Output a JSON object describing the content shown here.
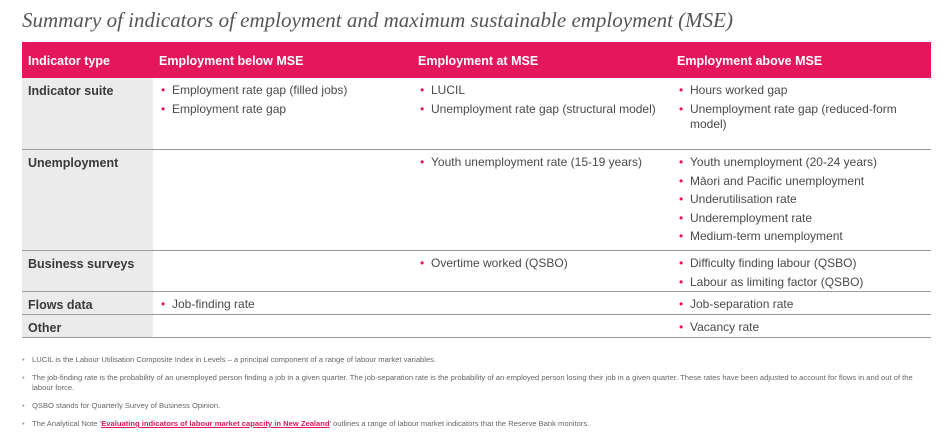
{
  "header": {
    "title": "Summary of indicators of employment and maximum sustainable employment (MSE)"
  },
  "table": {
    "columns": [
      "Indicator type",
      "Employment below MSE",
      "Employment at MSE",
      "Employment above MSE"
    ],
    "rows": [
      {
        "label": "Indicator suite",
        "cells": [
          [
            "Employment rate gap (filled jobs)",
            "Employment rate gap"
          ],
          [
            "LUCIL",
            "Unemployment rate gap (structural model)"
          ],
          [
            "Hours worked gap",
            "Unemployment rate gap (reduced-form model)"
          ]
        ]
      },
      {
        "label": "Unemployment",
        "cells": [
          [],
          [
            "Youth unemployment rate (15-19 years)"
          ],
          [
            "Youth unemployment (20-24 years)",
            "Māori and Pacific unemployment",
            "Underutilisation rate",
            "Underemployment rate",
            "Medium-term unemployment"
          ]
        ]
      },
      {
        "label": "Business surveys",
        "cells": [
          [],
          [
            "Overtime worked (QSBO)"
          ],
          [
            "Difficulty finding labour (QSBO)",
            "Labour as limiting factor (QSBO)"
          ]
        ]
      },
      {
        "label": "Flows data",
        "cells": [
          [
            "Job-finding rate"
          ],
          [],
          [
            "Job-separation rate"
          ]
        ]
      },
      {
        "label": "Other",
        "cells": [
          [],
          [],
          [
            "Vacancy rate"
          ]
        ]
      }
    ]
  },
  "footnotes": [
    {
      "text": "LUCIL is the Labour Utilisation Composite Index in Levels – a principal component of a range of labour market variables."
    },
    {
      "text": "The job-finding rate is the probability of an unemployed person finding a job in a given quarter. The job-separation rate is the probability of an employed person losing their job in a given quarter. These rates have been adjusted to account for flows in and out of the labour force."
    },
    {
      "text": "QSBO stands for Quarterly Survey of Business Opinion."
    },
    {
      "prefix": "The Analytical Note ‘",
      "link": "Evaluating indicators of labour market capacity in New Zealand",
      "suffix": "’ outlines a range of labour market indicators that the Reserve Bank monitors."
    }
  ]
}
